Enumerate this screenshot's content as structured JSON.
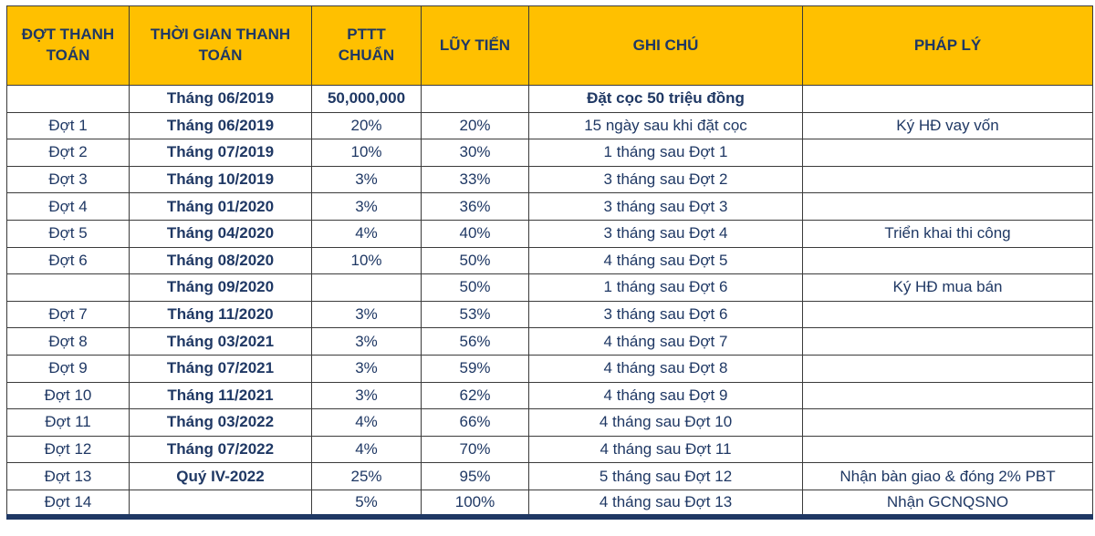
{
  "chart_data": {
    "type": "table",
    "title": "",
    "columns": [
      "ĐỢT THANH TOÁN",
      "THỜI GIAN THANH TOÁN",
      "PTTT CHUẨN",
      "LŨY TIẾN",
      "GHI CHÚ",
      "PHÁP LÝ"
    ],
    "rows": [
      {
        "dot": "",
        "time": "Tháng 06/2019",
        "pttt": "50,000,000",
        "luy": "",
        "note": "Đặt cọc 50 triệu đồng",
        "legal": "",
        "deposit": true
      },
      {
        "dot": "Đợt 1",
        "time": "Tháng 06/2019",
        "pttt": "20%",
        "luy": "20%",
        "note": "15 ngày sau khi đặt cọc",
        "legal": "Ký HĐ vay vốn",
        "deposit": false
      },
      {
        "dot": "Đợt 2",
        "time": "Tháng 07/2019",
        "pttt": "10%",
        "luy": "30%",
        "note": "1 tháng sau Đợt 1",
        "legal": "",
        "deposit": false
      },
      {
        "dot": "Đợt 3",
        "time": "Tháng 10/2019",
        "pttt": "3%",
        "luy": "33%",
        "note": "3 tháng sau Đợt 2",
        "legal": "",
        "deposit": false
      },
      {
        "dot": "Đợt 4",
        "time": "Tháng 01/2020",
        "pttt": "3%",
        "luy": "36%",
        "note": "3 tháng sau Đợt 3",
        "legal": "",
        "deposit": false
      },
      {
        "dot": "Đợt 5",
        "time": "Tháng 04/2020",
        "pttt": "4%",
        "luy": "40%",
        "note": "3 tháng sau Đợt 4",
        "legal": "Triển khai thi công",
        "deposit": false
      },
      {
        "dot": "Đợt 6",
        "time": "Tháng 08/2020",
        "pttt": "10%",
        "luy": "50%",
        "note": "4 tháng sau Đợt 5",
        "legal": "",
        "deposit": false
      },
      {
        "dot": "",
        "time": "Tháng 09/2020",
        "pttt": "",
        "luy": "50%",
        "note": "1 tháng sau Đợt 6",
        "legal": "Ký HĐ mua bán",
        "deposit": false
      },
      {
        "dot": "Đợt 7",
        "time": "Tháng 11/2020",
        "pttt": "3%",
        "luy": "53%",
        "note": "3 tháng sau Đợt 6",
        "legal": "",
        "deposit": false
      },
      {
        "dot": "Đợt 8",
        "time": "Tháng 03/2021",
        "pttt": "3%",
        "luy": "56%",
        "note": "4 tháng sau Đợt 7",
        "legal": "",
        "deposit": false
      },
      {
        "dot": "Đợt 9",
        "time": "Tháng 07/2021",
        "pttt": "3%",
        "luy": "59%",
        "note": "4 tháng sau Đợt 8",
        "legal": "",
        "deposit": false
      },
      {
        "dot": "Đợt 10",
        "time": "Tháng 11/2021",
        "pttt": "3%",
        "luy": "62%",
        "note": "4 tháng sau Đợt 9",
        "legal": "",
        "deposit": false
      },
      {
        "dot": "Đợt 11",
        "time": "Tháng 03/2022",
        "pttt": "4%",
        "luy": "66%",
        "note": "4 tháng sau Đợt 10",
        "legal": "",
        "deposit": false
      },
      {
        "dot": "Đợt 12",
        "time": "Tháng 07/2022",
        "pttt": "4%",
        "luy": "70%",
        "note": "4 tháng sau Đợt 11",
        "legal": "",
        "deposit": false
      },
      {
        "dot": "Đợt 13",
        "time": "Quý IV-2022",
        "pttt": "25%",
        "luy": "95%",
        "note": "5 tháng sau Đợt 12",
        "legal": "Nhận bàn giao & đóng 2% PBT",
        "deposit": false
      },
      {
        "dot": "Đợt 14",
        "time": "",
        "pttt": "5%",
        "luy": "100%",
        "note": "4 tháng sau Đợt 13",
        "legal": "Nhận GCNQSNO",
        "deposit": false
      }
    ]
  },
  "colors": {
    "header_bg": "#FFC000",
    "text": "#1F3864",
    "grid_border": "#3B3B3B",
    "bottom_border": "#1F3864"
  }
}
